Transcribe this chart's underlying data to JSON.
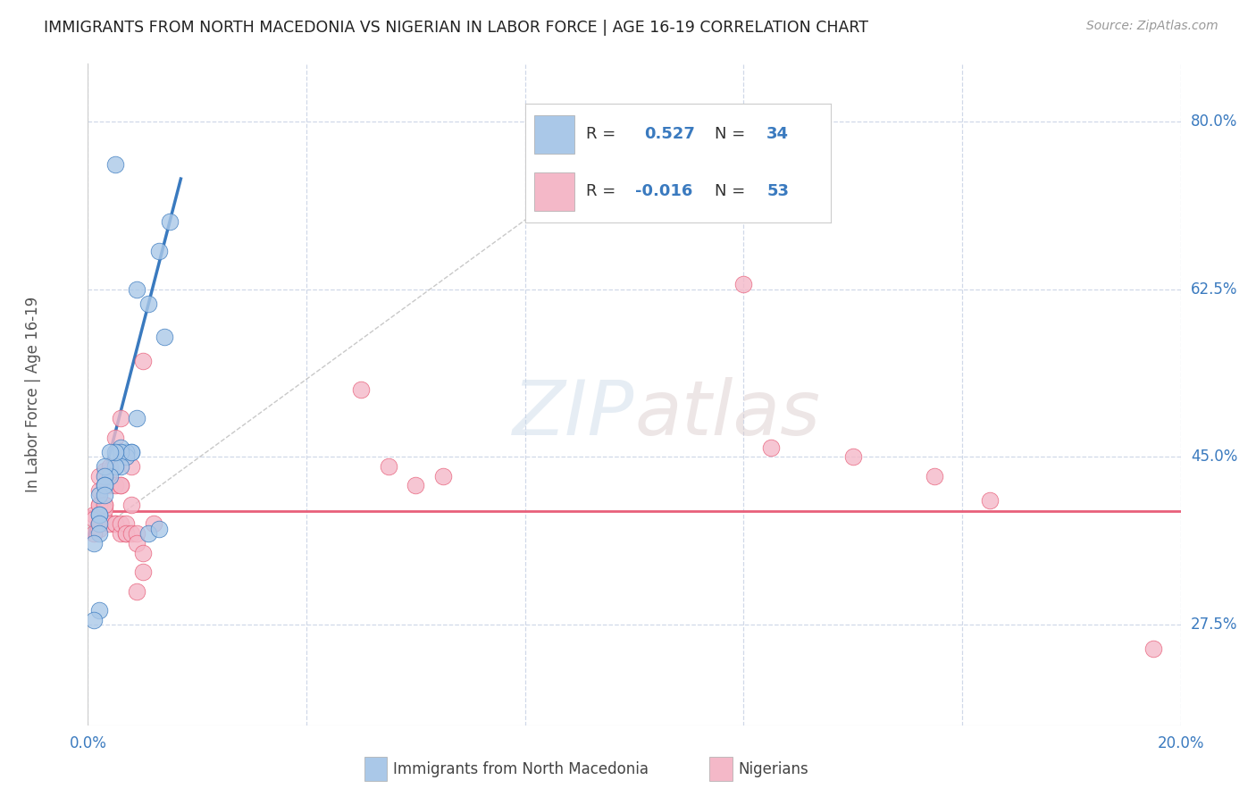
{
  "title": "IMMIGRANTS FROM NORTH MACEDONIA VS NIGERIAN IN LABOR FORCE | AGE 16-19 CORRELATION CHART",
  "source": "Source: ZipAtlas.com",
  "ylabel_axis_label": "In Labor Force | Age 16-19",
  "legend_blue_r": "0.527",
  "legend_blue_n": "34",
  "legend_pink_r": "-0.016",
  "legend_pink_n": "53",
  "blue_color": "#aac8e8",
  "pink_color": "#f4b8c8",
  "blue_line_color": "#3a7abf",
  "pink_line_color": "#e8607a",
  "watermark_text": "ZIPatlas",
  "background_color": "#ffffff",
  "grid_color": "#d0d8e8",
  "xlim": [
    0.0,
    0.2
  ],
  "ylim": [
    0.17,
    0.86
  ],
  "yticks": [
    0.275,
    0.45,
    0.625,
    0.8
  ],
  "xticks": [
    0.0,
    0.04,
    0.08,
    0.12,
    0.16,
    0.2
  ],
  "blue_scatter_x": [
    0.005,
    0.015,
    0.013,
    0.014,
    0.009,
    0.011,
    0.009,
    0.008,
    0.007,
    0.007,
    0.007,
    0.006,
    0.006,
    0.008,
    0.006,
    0.005,
    0.005,
    0.004,
    0.004,
    0.003,
    0.003,
    0.003,
    0.002,
    0.002,
    0.003,
    0.003,
    0.002,
    0.002,
    0.002,
    0.011,
    0.013,
    0.002,
    0.001,
    0.001
  ],
  "blue_scatter_y": [
    0.755,
    0.695,
    0.665,
    0.575,
    0.625,
    0.61,
    0.49,
    0.455,
    0.455,
    0.455,
    0.45,
    0.46,
    0.455,
    0.455,
    0.44,
    0.44,
    0.455,
    0.455,
    0.43,
    0.44,
    0.43,
    0.42,
    0.41,
    0.39,
    0.42,
    0.41,
    0.39,
    0.38,
    0.37,
    0.37,
    0.375,
    0.29,
    0.28,
    0.36
  ],
  "pink_scatter_x": [
    0.001,
    0.002,
    0.003,
    0.001,
    0.002,
    0.001,
    0.003,
    0.002,
    0.003,
    0.004,
    0.003,
    0.002,
    0.002,
    0.003,
    0.002,
    0.003,
    0.004,
    0.004,
    0.003,
    0.005,
    0.005,
    0.006,
    0.004,
    0.005,
    0.005,
    0.006,
    0.006,
    0.006,
    0.007,
    0.006,
    0.007,
    0.007,
    0.008,
    0.007,
    0.008,
    0.008,
    0.009,
    0.009,
    0.01,
    0.01,
    0.009,
    0.01,
    0.012,
    0.05,
    0.055,
    0.06,
    0.065,
    0.12,
    0.125,
    0.14,
    0.155,
    0.165,
    0.195
  ],
  "pink_scatter_y": [
    0.39,
    0.4,
    0.4,
    0.385,
    0.375,
    0.37,
    0.385,
    0.38,
    0.42,
    0.42,
    0.43,
    0.4,
    0.415,
    0.435,
    0.43,
    0.395,
    0.435,
    0.44,
    0.4,
    0.42,
    0.47,
    0.49,
    0.38,
    0.38,
    0.38,
    0.42,
    0.37,
    0.42,
    0.45,
    0.38,
    0.37,
    0.38,
    0.44,
    0.37,
    0.37,
    0.4,
    0.37,
    0.36,
    0.35,
    0.33,
    0.31,
    0.55,
    0.38,
    0.52,
    0.44,
    0.42,
    0.43,
    0.63,
    0.46,
    0.45,
    0.43,
    0.405,
    0.25
  ],
  "blue_trend_x": [
    0.0,
    0.017
  ],
  "blue_trend_y": [
    0.365,
    0.74
  ],
  "pink_trend_y": 0.393,
  "ref_line_x": [
    0.0,
    0.1
  ],
  "ref_line_y": [
    0.365,
    0.78
  ]
}
